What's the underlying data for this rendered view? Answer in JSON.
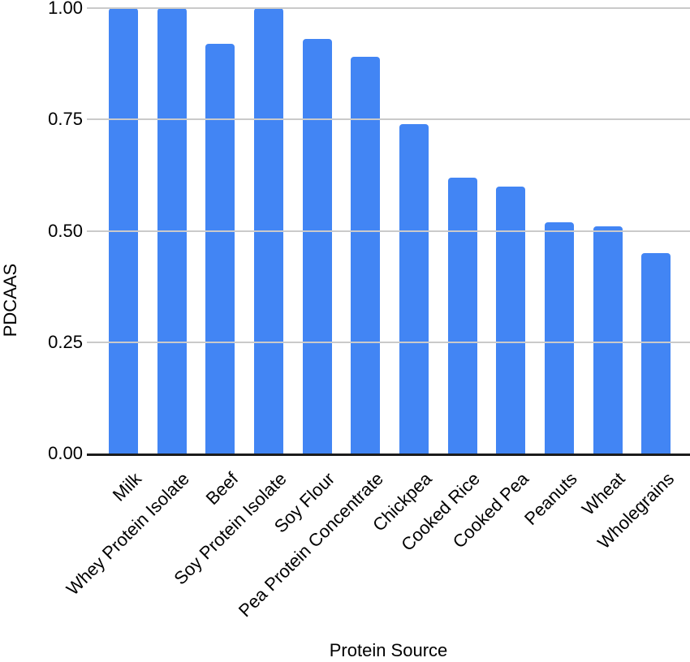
{
  "chart_data": {
    "type": "bar",
    "title": "",
    "xlabel": "Protein Source",
    "ylabel": "PDCAAS",
    "categories": [
      "Milk",
      "Whey Protein Isolate",
      "Beef",
      "Soy Protein Isolate",
      "Soy Flour",
      "Pea Protein Concentrate",
      "Chickpea",
      "Cooked Rice",
      "Cooked Pea",
      "Peanuts",
      "Wheat",
      "Wholegrains"
    ],
    "values": [
      1.0,
      1.0,
      0.92,
      1.0,
      0.93,
      0.89,
      0.74,
      0.62,
      0.6,
      0.52,
      0.51,
      0.45
    ],
    "ylim": [
      0,
      1.0
    ],
    "yticks": [
      0,
      0.25,
      0.5,
      0.75,
      1.0
    ],
    "ytick_labels": [
      "0.00",
      "0.25",
      "0.50",
      "0.75",
      "1.00"
    ],
    "grid": true,
    "legend": false,
    "colors": {
      "bar": "#4285F4",
      "gridline": "#cacaca",
      "axis_line": "#1c1c1c",
      "text": "#000000",
      "background": "#ffffff"
    }
  }
}
